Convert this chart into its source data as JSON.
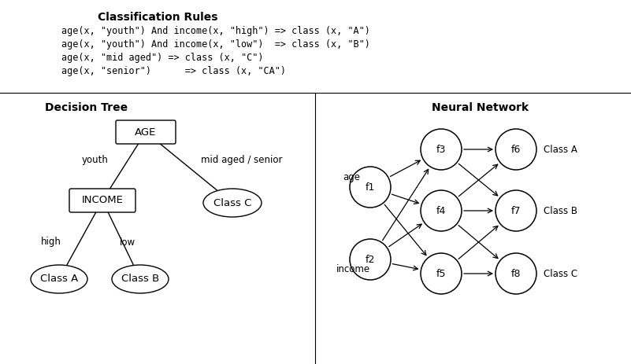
{
  "rules_title": "Classification Rules",
  "rules": [
    "age(x, \"youth\") And income(x, \"high\") => class (x, \"A\")",
    "age(x, \"youth\") And income(x, \"low\")  => class (x, \"B\")",
    "age(x, \"mid aged\") => class (x, \"C\")",
    "age(x, \"senior\")      => class (x, \"CA\")"
  ],
  "dt_title": "Decision Tree",
  "nn_title": "Neural Network",
  "bg_color": "#ffffff",
  "text_color": "#000000"
}
